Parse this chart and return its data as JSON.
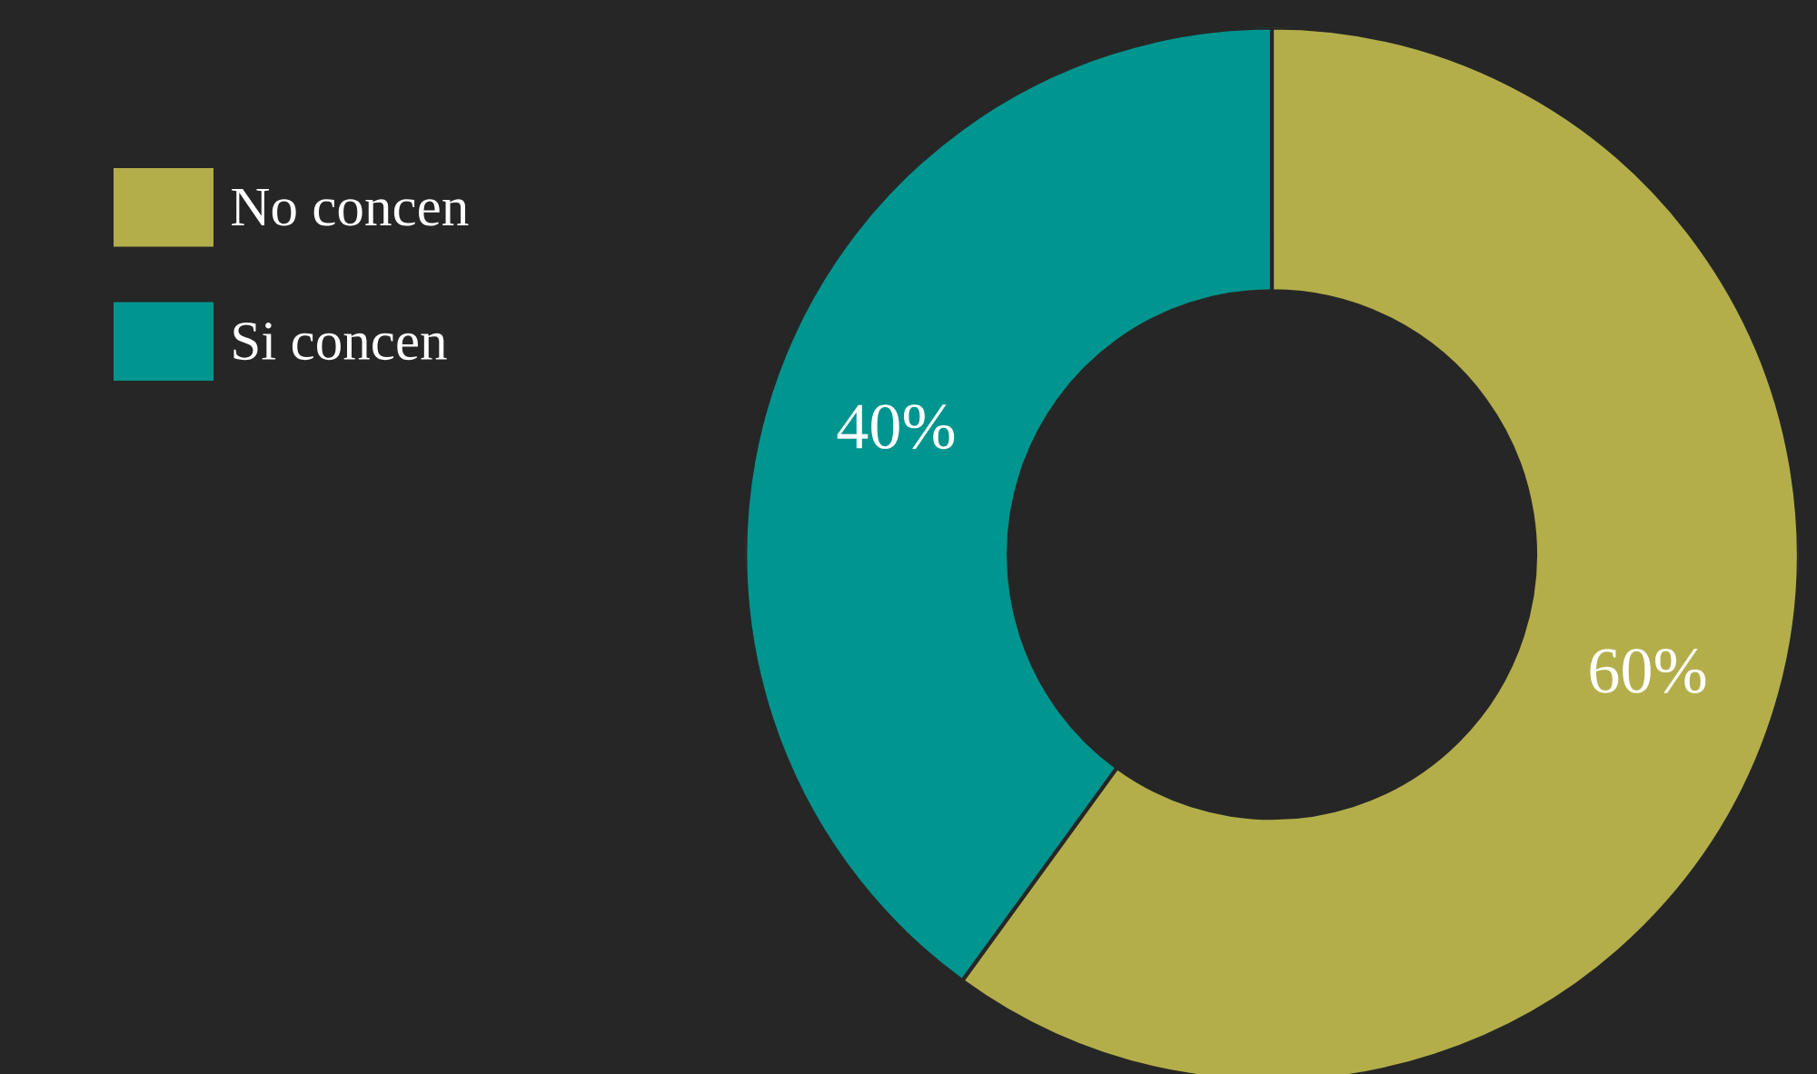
{
  "chart_data": {
    "type": "donut",
    "categories": [
      "No concen",
      "Si concen"
    ],
    "values": [
      60,
      40
    ],
    "colors": [
      "#b3ae4a",
      "#00958f"
    ],
    "value_labels": [
      "60%",
      "40%"
    ],
    "legend": "top left"
  }
}
